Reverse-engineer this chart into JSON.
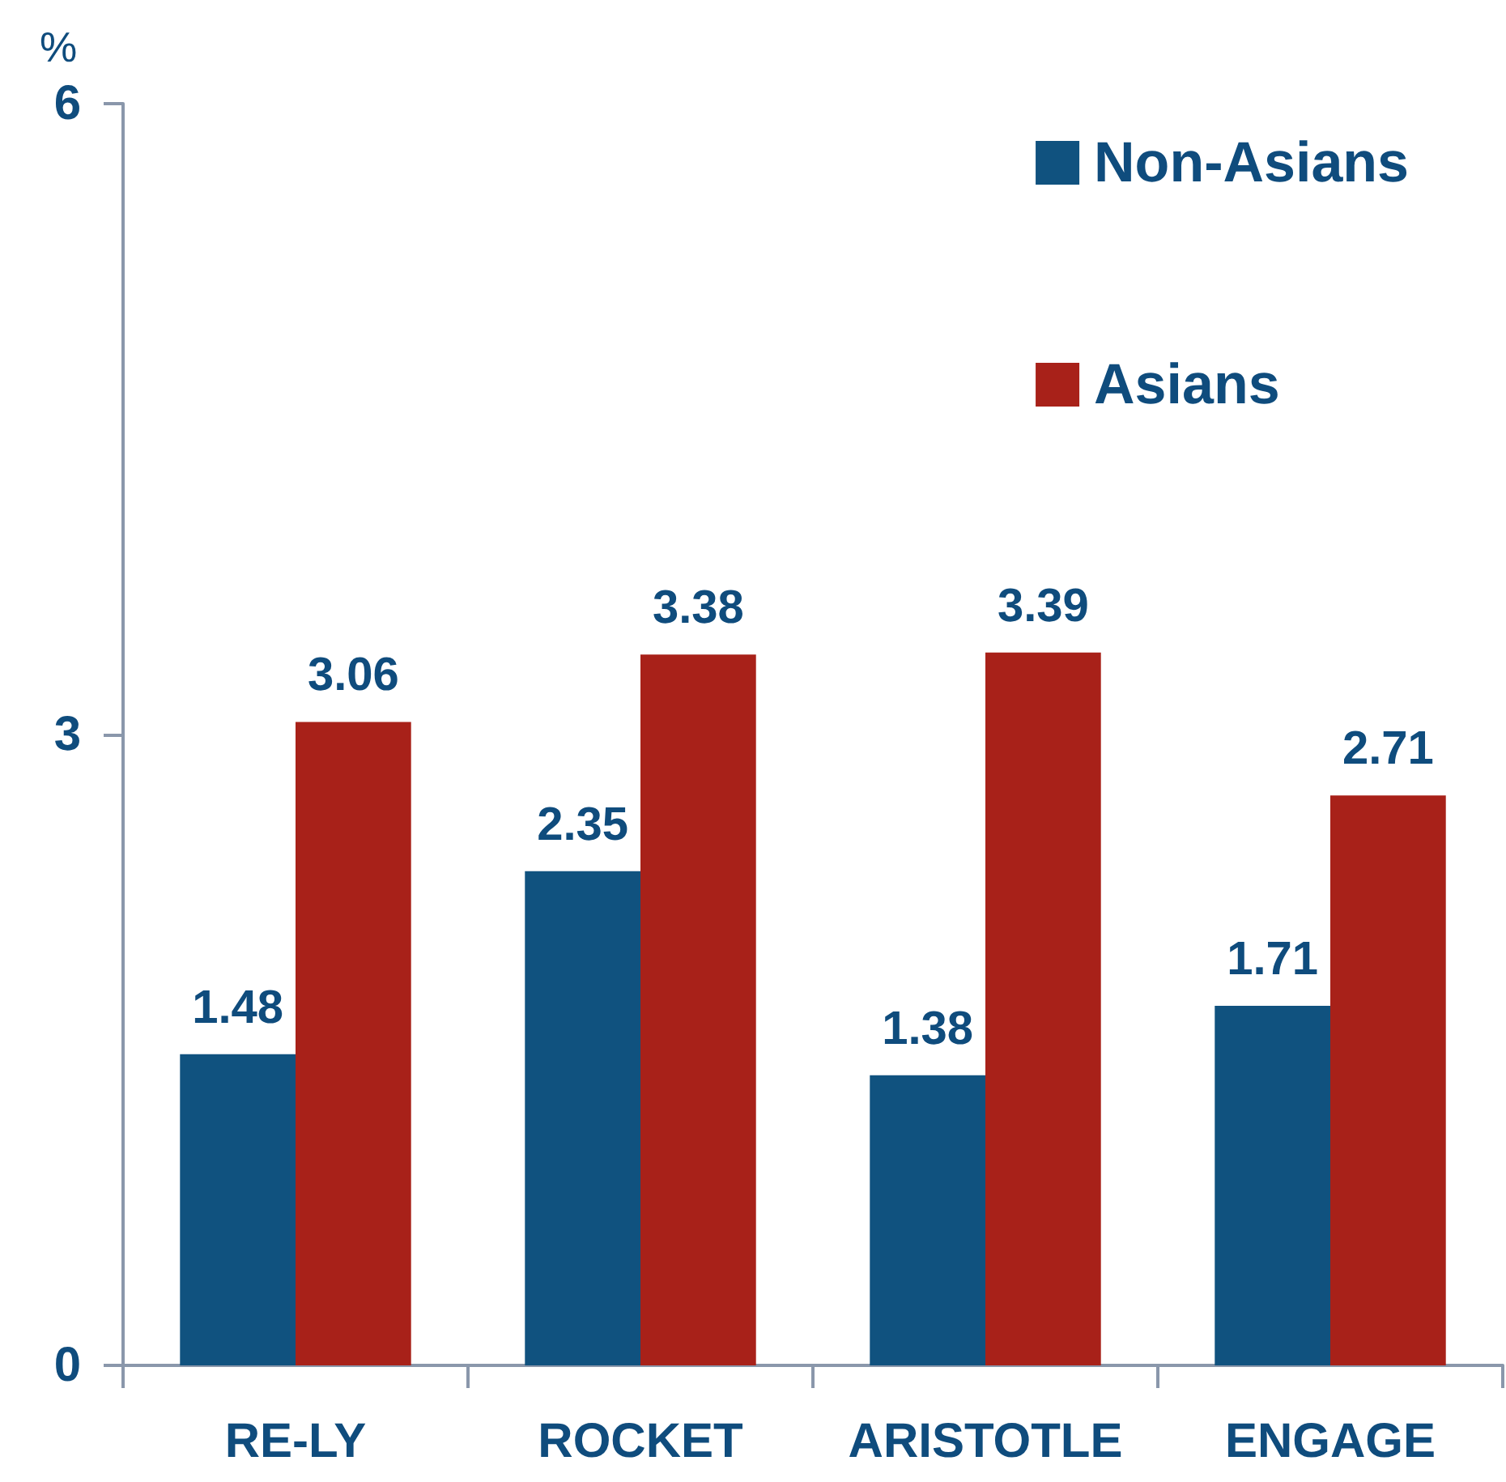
{
  "chart_data": {
    "type": "bar",
    "ylabel": "%",
    "categories": [
      "RE-LY",
      "ROCKET",
      "ARISTOTLE",
      "ENGAGE"
    ],
    "series": [
      {
        "name": "Non-Asians",
        "color": "#10527f",
        "values": [
          1.48,
          2.35,
          1.38,
          1.71
        ]
      },
      {
        "name": "Asians",
        "color": "#a82119",
        "values": [
          3.06,
          3.38,
          3.39,
          2.71
        ]
      }
    ],
    "ylim": [
      0,
      6
    ],
    "yticks": [
      0,
      3,
      6
    ],
    "legend": "top right",
    "data_labels": true
  }
}
